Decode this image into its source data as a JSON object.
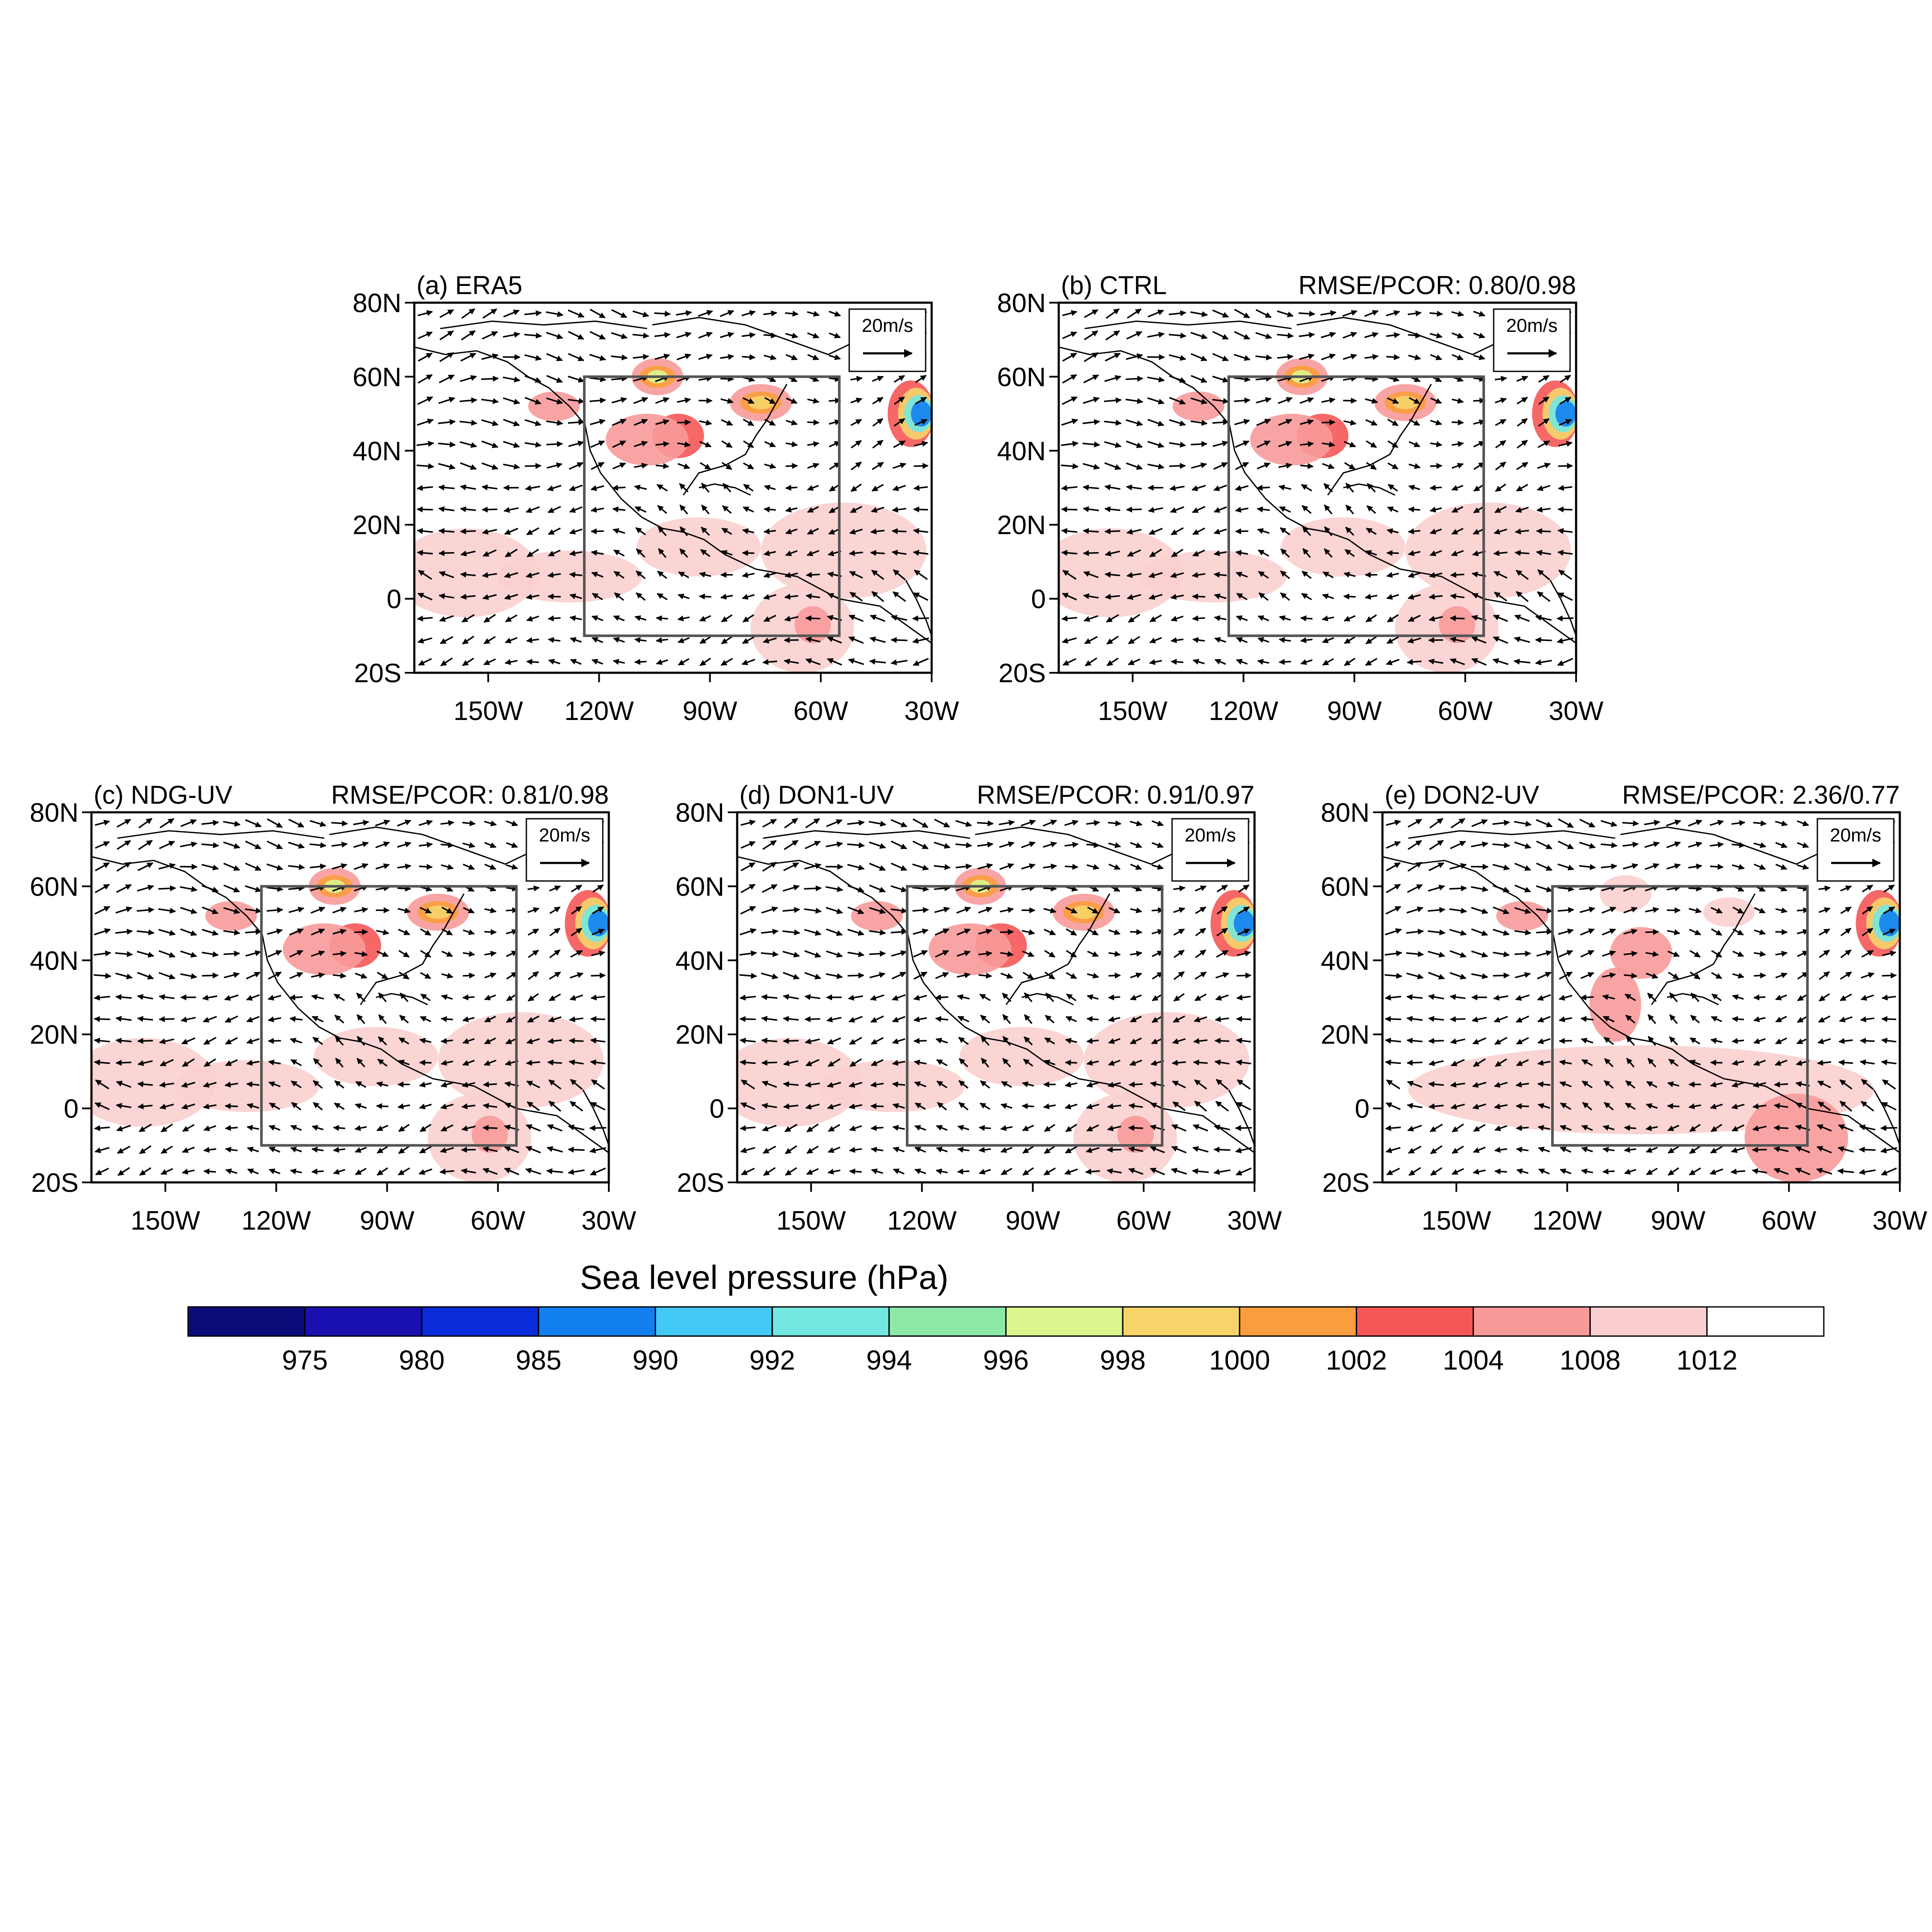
{
  "figure": {
    "panels": [
      {
        "id": "a",
        "title": "(a) ERA5",
        "stats": ""
      },
      {
        "id": "b",
        "title": "(b) CTRL",
        "stats": "RMSE/PCOR: 0.80/0.98"
      },
      {
        "id": "c",
        "title": "(c) NDG-UV",
        "stats": "RMSE/PCOR: 0.81/0.98"
      },
      {
        "id": "d",
        "title": "(d) DON1-UV",
        "stats": "RMSE/PCOR: 0.91/0.97"
      },
      {
        "id": "e",
        "title": "(e) DON2-UV",
        "stats": "RMSE/PCOR: 2.36/0.77"
      }
    ],
    "lat_ticks": [
      "80N",
      "60N",
      "40N",
      "20N",
      "0",
      "20S"
    ],
    "lon_ticks": [
      "150W",
      "120W",
      "90W",
      "60W",
      "30W"
    ],
    "lat_values": [
      80,
      60,
      40,
      20,
      0,
      -20
    ],
    "lon_values": [
      -150,
      -120,
      -90,
      -60,
      -30
    ],
    "map_extent": {
      "lon_min": -170,
      "lon_max": -30,
      "lat_min": -20,
      "lat_max": 80
    },
    "region_box": {
      "lon_min": -124,
      "lon_max": -55,
      "lat_min": -10,
      "lat_max": 60
    },
    "reference_vector": {
      "label": "20m/s"
    },
    "colorbar": {
      "title": "Sea level pressure  (hPa)",
      "levels": [
        "975",
        "980",
        "985",
        "990",
        "992",
        "994",
        "996",
        "998",
        "1000",
        "1002",
        "1004",
        "1008",
        "1012"
      ],
      "colors": [
        "#0b0b7a",
        "#1a10b0",
        "#0a2bd9",
        "#127ff0",
        "#44c8f5",
        "#73e8e0",
        "#8ee8a8",
        "#dcf58c",
        "#f6d46a",
        "#fa9d3e",
        "#f55656",
        "#f89a9a",
        "#fbcfcf",
        "#ffffff"
      ]
    }
  }
}
